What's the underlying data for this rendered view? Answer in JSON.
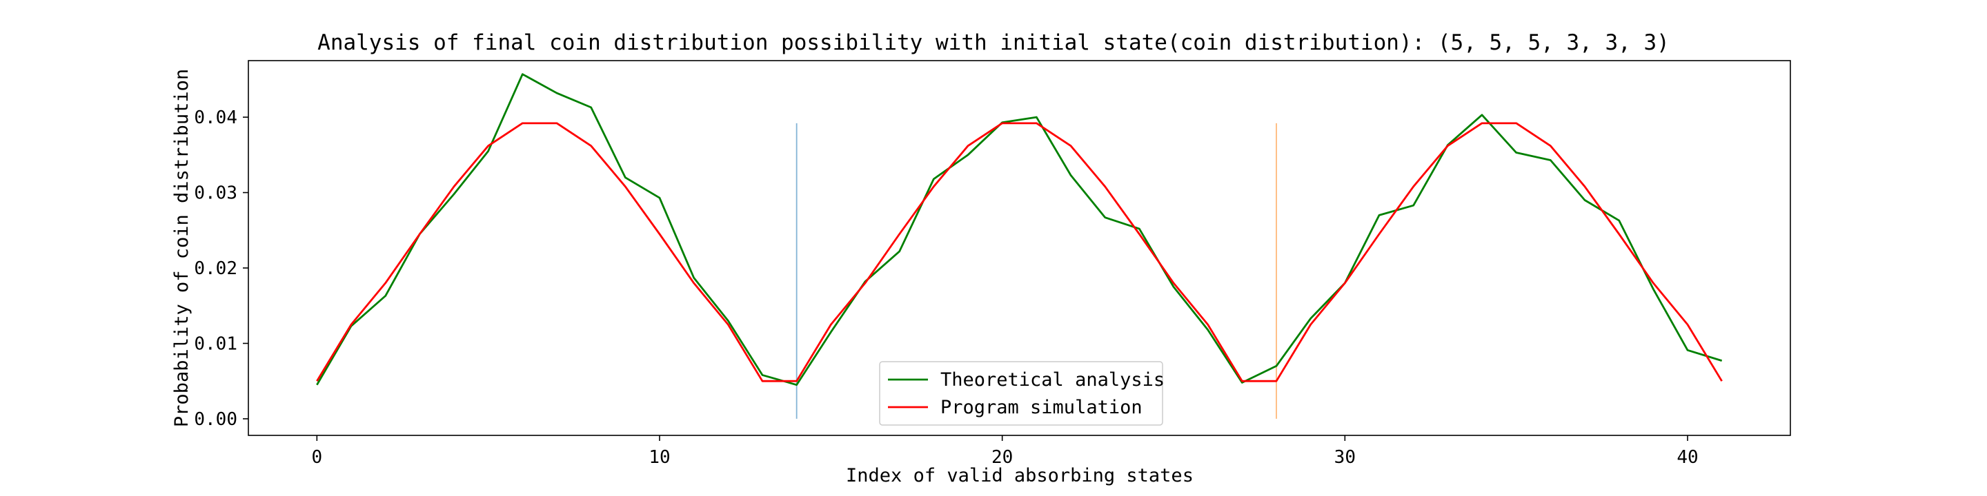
{
  "chart_data": {
    "type": "line",
    "title": "Analysis of final coin distribution possibility with initial state(coin distribution): (5, 5, 5, 3, 3, 3)",
    "xlabel": "Index of valid absorbing states",
    "ylabel": "Probability of coin distribution",
    "xlim": [
      -2,
      43
    ],
    "ylim": [
      -0.0022,
      0.0475
    ],
    "xticks": [
      0,
      10,
      20,
      30,
      40
    ],
    "xtick_labels": [
      "0",
      "10",
      "20",
      "30",
      "40"
    ],
    "yticks": [
      0.0,
      0.01,
      0.02,
      0.03,
      0.04
    ],
    "ytick_labels": [
      "0.00",
      "0.01",
      "0.02",
      "0.03",
      "0.04"
    ],
    "grid": false,
    "legend_position": "lower-center",
    "x": [
      0,
      1,
      2,
      3,
      4,
      5,
      6,
      7,
      8,
      9,
      10,
      11,
      12,
      13,
      14,
      15,
      16,
      17,
      18,
      19,
      20,
      21,
      22,
      23,
      24,
      25,
      26,
      27,
      28,
      29,
      30,
      31,
      32,
      33,
      34,
      35,
      36,
      37,
      38,
      39,
      40,
      41
    ],
    "series": [
      {
        "name": "Theoretical analysis",
        "color": "#008000",
        "values": [
          0.0045,
          0.0123,
          0.0163,
          0.0245,
          0.0298,
          0.0355,
          0.0457,
          0.0432,
          0.0413,
          0.032,
          0.0293,
          0.0187,
          0.013,
          0.0058,
          0.0045,
          0.0115,
          0.0182,
          0.0222,
          0.0318,
          0.035,
          0.0393,
          0.04,
          0.0323,
          0.0267,
          0.0252,
          0.0175,
          0.0118,
          0.0048,
          0.007,
          0.0133,
          0.018,
          0.027,
          0.0283,
          0.0363,
          0.0403,
          0.0353,
          0.0343,
          0.029,
          0.0263,
          0.0172,
          0.0091,
          0.0077
        ]
      },
      {
        "name": "Program simulation",
        "color": "#ff0000",
        "values": [
          0.005,
          0.0125,
          0.018,
          0.0245,
          0.0308,
          0.0362,
          0.0392,
          0.0392,
          0.0362,
          0.0308,
          0.0245,
          0.018,
          0.0125,
          0.005,
          0.005,
          0.0125,
          0.018,
          0.0245,
          0.0308,
          0.0362,
          0.0392,
          0.0392,
          0.0362,
          0.0308,
          0.0245,
          0.018,
          0.0125,
          0.005,
          0.005,
          0.0125,
          0.018,
          0.0245,
          0.0308,
          0.0362,
          0.0392,
          0.0392,
          0.0362,
          0.0308,
          0.0245,
          0.018,
          0.0125,
          0.005
        ]
      }
    ],
    "vlines": [
      {
        "x": 14,
        "ymin": 0.0,
        "ymax": 0.0392,
        "color": "#1f77b4"
      },
      {
        "x": 28,
        "ymin": 0.0,
        "ymax": 0.0392,
        "color": "#ff7f0e"
      }
    ]
  }
}
